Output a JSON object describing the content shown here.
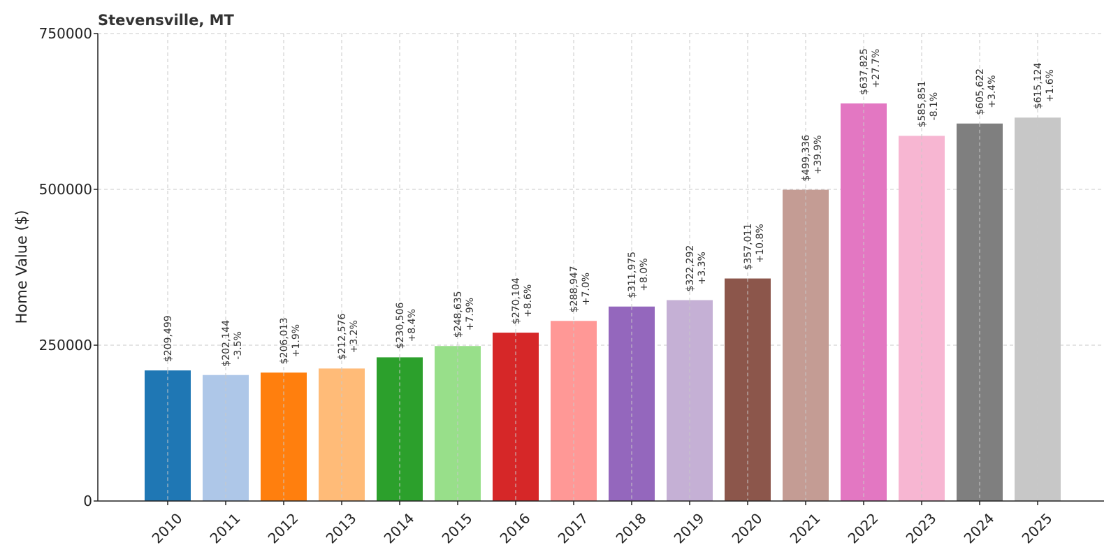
{
  "chart_data": {
    "type": "bar",
    "title": "Stevensville, MT",
    "ylabel": "Home Value ($)",
    "xlabel": "",
    "ylim": [
      0,
      750000
    ],
    "yticks": [
      0,
      250000,
      500000,
      750000
    ],
    "ytick_labels": [
      "0",
      "250000",
      "500000",
      "750000"
    ],
    "grid": true,
    "categories": [
      "2010",
      "2011",
      "2012",
      "2013",
      "2014",
      "2015",
      "2016",
      "2017",
      "2018",
      "2019",
      "2020",
      "2021",
      "2022",
      "2023",
      "2024",
      "2025"
    ],
    "values": [
      209499,
      202144,
      206013,
      212576,
      230506,
      248635,
      270104,
      288947,
      311975,
      322292,
      357011,
      499336,
      637825,
      585851,
      605622,
      615124
    ],
    "value_labels": [
      "$209,499",
      "$202,144",
      "$206,013",
      "$212,576",
      "$230,506",
      "$248,635",
      "$270,104",
      "$288,947",
      "$311,975",
      "$322,292",
      "$357,011",
      "$499,336",
      "$637,825",
      "$585,851",
      "$605,622",
      "$615,124"
    ],
    "change_labels": [
      "",
      "-3.5%",
      "+1.9%",
      "+3.2%",
      "+8.4%",
      "+7.9%",
      "+8.6%",
      "+7.0%",
      "+8.0%",
      "+3.3%",
      "+10.8%",
      "+39.9%",
      "+27.7%",
      "-8.1%",
      "+3.4%",
      "+1.6%"
    ],
    "colors": [
      "#1f77b4",
      "#aec7e8",
      "#ff7f0e",
      "#ffbb78",
      "#2ca02c",
      "#98df8a",
      "#d62728",
      "#ff9896",
      "#9467bd",
      "#c5b0d5",
      "#8c564b",
      "#c49c94",
      "#e377c2",
      "#f7b6d2",
      "#7f7f7f",
      "#c7c7c7"
    ]
  }
}
